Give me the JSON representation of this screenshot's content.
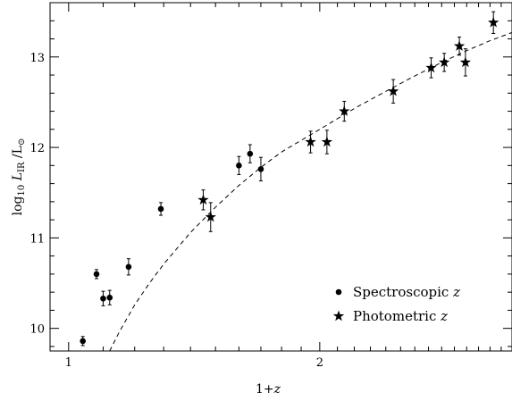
{
  "chart_data": {
    "type": "scatter",
    "title": "",
    "xlabel": "1+z",
    "ylabel": "log10 L_IR / L_sun",
    "x_scale": "log",
    "xlim": [
      0.95,
      3.4
    ],
    "ylim": [
      9.75,
      13.6
    ],
    "x_ticks": [
      1,
      2
    ],
    "y_ticks": [
      10,
      11,
      12,
      13
    ],
    "grid": false,
    "legend_position": "bottom-right",
    "series": [
      {
        "name": "Spectroscopic z",
        "marker": "circle",
        "points": [
          {
            "x": 1.04,
            "y": 9.86,
            "err": 0.05
          },
          {
            "x": 1.08,
            "y": 10.6,
            "err": 0.05
          },
          {
            "x": 1.1,
            "y": 10.33,
            "err": 0.08
          },
          {
            "x": 1.12,
            "y": 10.34,
            "err": 0.08
          },
          {
            "x": 1.18,
            "y": 10.68,
            "err": 0.09
          },
          {
            "x": 1.29,
            "y": 11.32,
            "err": 0.07
          },
          {
            "x": 1.6,
            "y": 11.8,
            "err": 0.1
          },
          {
            "x": 1.65,
            "y": 11.93,
            "err": 0.1
          },
          {
            "x": 1.7,
            "y": 11.76,
            "err": 0.13
          }
        ]
      },
      {
        "name": "Photometric z",
        "marker": "star",
        "points": [
          {
            "x": 1.45,
            "y": 11.42,
            "err": 0.11
          },
          {
            "x": 1.48,
            "y": 11.23,
            "err": 0.16
          },
          {
            "x": 1.95,
            "y": 12.06,
            "err": 0.12
          },
          {
            "x": 2.04,
            "y": 12.06,
            "err": 0.13
          },
          {
            "x": 2.14,
            "y": 12.4,
            "err": 0.11
          },
          {
            "x": 2.45,
            "y": 12.62,
            "err": 0.13
          },
          {
            "x": 2.72,
            "y": 12.88,
            "err": 0.11
          },
          {
            "x": 2.82,
            "y": 12.94,
            "err": 0.1
          },
          {
            "x": 2.94,
            "y": 13.12,
            "err": 0.1
          },
          {
            "x": 2.99,
            "y": 12.94,
            "err": 0.15
          },
          {
            "x": 3.23,
            "y": 13.38,
            "err": 0.12
          }
        ]
      }
    ],
    "curve": {
      "style": "dashed",
      "points": [
        [
          1.12,
          9.75
        ],
        [
          1.15,
          9.96
        ],
        [
          1.2,
          10.26
        ],
        [
          1.25,
          10.5
        ],
        [
          1.3,
          10.71
        ],
        [
          1.4,
          11.06
        ],
        [
          1.5,
          11.34
        ],
        [
          1.6,
          11.58
        ],
        [
          1.7,
          11.78
        ],
        [
          1.8,
          11.95
        ],
        [
          2.0,
          12.2
        ],
        [
          2.2,
          12.43
        ],
        [
          2.4,
          12.62
        ],
        [
          2.6,
          12.79
        ],
        [
          2.8,
          12.94
        ],
        [
          3.0,
          13.07
        ],
        [
          3.2,
          13.18
        ],
        [
          3.4,
          13.27
        ]
      ]
    }
  },
  "legend": {
    "spectroscopic_label": "Spectroscopic",
    "photometric_label": "Photometric",
    "z_symbol": "z"
  },
  "axis_text": {
    "x_prefix": "1+",
    "x_var": "z",
    "y_log": "log",
    "y_sub10": "10",
    "y_L": "L",
    "y_sub_ir": "IR",
    "y_slash": "/L",
    "y_sun": "⊙"
  }
}
